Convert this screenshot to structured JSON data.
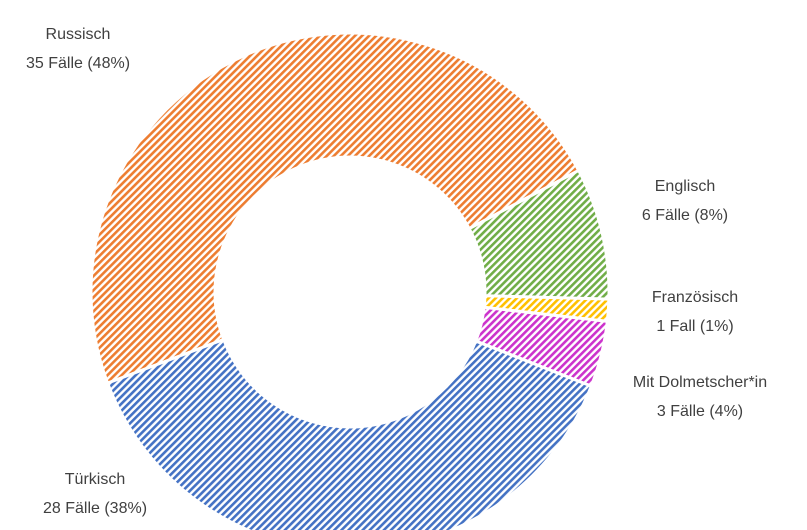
{
  "chart_data": {
    "type": "donut",
    "categories": [
      "Russisch",
      "Englisch",
      "Französisch",
      "Mit Dolmetscher*in",
      "Türkisch"
    ],
    "values": [
      35,
      6,
      1,
      3,
      28
    ],
    "value_labels": [
      "35 Fälle (48%)",
      "6 Fälle (8%)",
      "1 Fall (1%)",
      "3 Fälle (4%)",
      "28 Fälle (38%)"
    ],
    "colors": [
      "#ed7d31",
      "#70ad47",
      "#ffc000",
      "#cc33cc",
      "#4472c4"
    ]
  }
}
